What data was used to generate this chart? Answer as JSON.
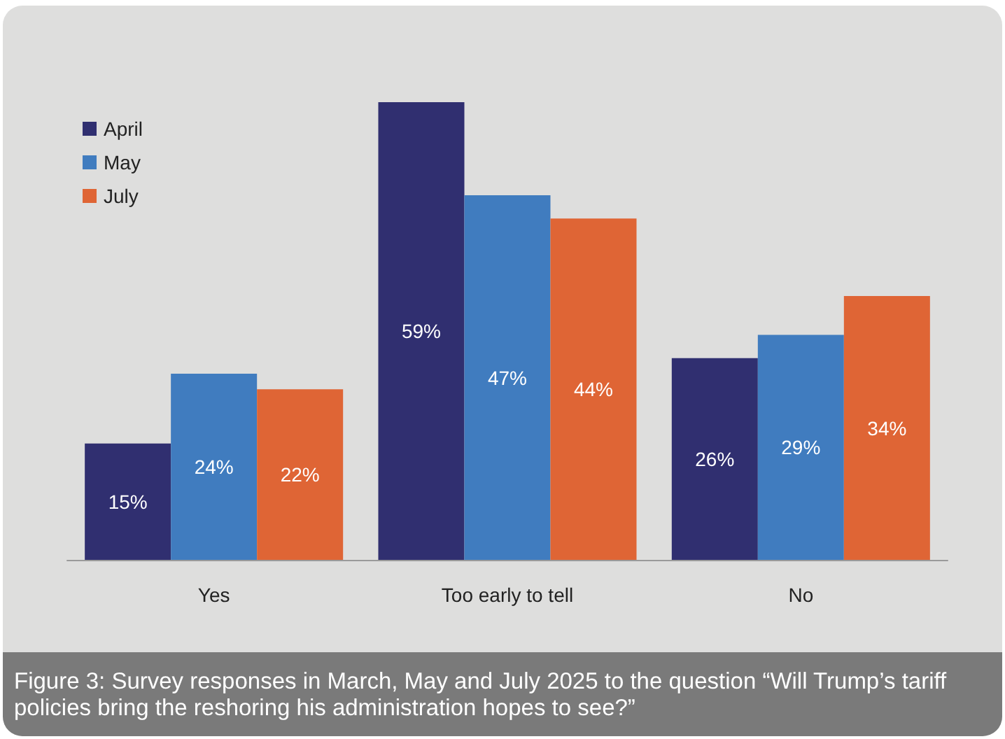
{
  "chart_data": {
    "type": "bar",
    "categories": [
      "Yes",
      "Too early to tell",
      "No"
    ],
    "series": [
      {
        "name": "April",
        "color": "#302f70",
        "values": [
          15,
          59,
          26
        ],
        "value_labels": [
          "15%",
          "59%",
          "26%"
        ]
      },
      {
        "name": "May",
        "color": "#407cbf",
        "values": [
          24,
          47,
          29
        ],
        "value_labels": [
          "24%",
          "47%",
          "29%"
        ]
      },
      {
        "name": "July",
        "color": "#df6535",
        "values": [
          22,
          44,
          34
        ],
        "value_labels": [
          "22%",
          "44%",
          "34%"
        ]
      }
    ],
    "legend": "top left",
    "grid": false,
    "annotations": [
      "Figure 3: Survey responses in March, May and July 2025 to the question “Will Trump’s tariff policies bring the reshoring his administration hopes to see?”"
    ]
  }
}
